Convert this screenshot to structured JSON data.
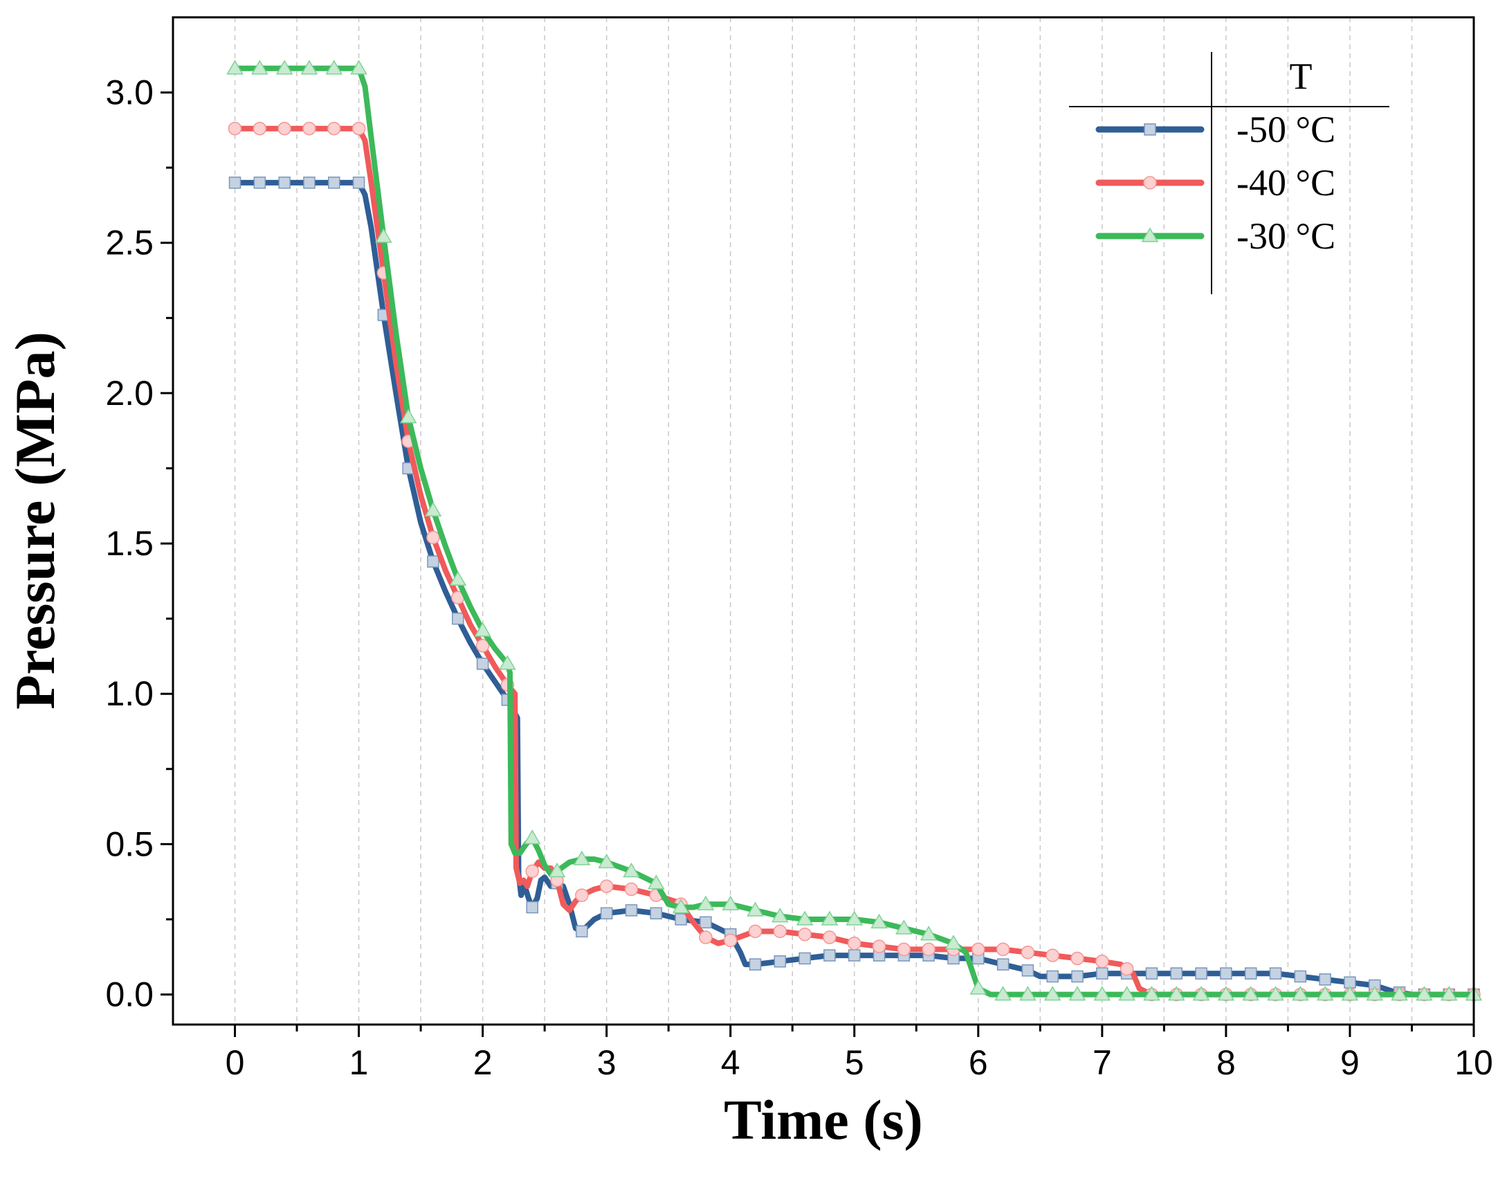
{
  "chart_data": {
    "type": "line",
    "title": "",
    "xlabel": "Time (s)",
    "ylabel": "Pressure (MPa)",
    "xlim": [
      -0.5,
      10
    ],
    "ylim": [
      -0.1,
      3.25
    ],
    "xticks": [
      0,
      1,
      2,
      3,
      4,
      5,
      6,
      7,
      8,
      9,
      10
    ],
    "xtick_labels": [
      "0",
      "1",
      "2",
      "3",
      "4",
      "5",
      "6",
      "7",
      "8",
      "9",
      "10"
    ],
    "yticks": [
      0.0,
      0.5,
      1.0,
      1.5,
      2.0,
      2.5,
      3.0
    ],
    "ytick_labels": [
      "0.0",
      "0.5",
      "1.0",
      "1.5",
      "2.0",
      "2.5",
      "3.0"
    ],
    "vertical_grid_step": 0.5,
    "grid": "vertical dashed",
    "legend_title": "T",
    "legend_position": "top-right",
    "series": [
      {
        "name": "-50 °C",
        "color": "#2f5e96",
        "marker": "square",
        "x": [
          0,
          0.2,
          0.4,
          0.6,
          0.8,
          1.0,
          1.05,
          1.1,
          1.2,
          1.3,
          1.4,
          1.5,
          1.6,
          1.7,
          1.8,
          1.9,
          2.0,
          2.1,
          2.2,
          2.28,
          2.29,
          2.31,
          2.34,
          2.37,
          2.4,
          2.44,
          2.47,
          2.5,
          2.55,
          2.6,
          2.65,
          2.7,
          2.75,
          2.8,
          2.85,
          2.9,
          3.0,
          3.2,
          3.4,
          3.6,
          3.8,
          4.0,
          4.08,
          4.12,
          4.2,
          4.4,
          4.6,
          4.8,
          5.0,
          5.2,
          5.4,
          5.6,
          5.8,
          6.0,
          6.2,
          6.4,
          6.5,
          6.6,
          6.8,
          7.0,
          7.2,
          7.4,
          7.6,
          7.8,
          8.0,
          8.2,
          8.4,
          8.6,
          8.8,
          9.0,
          9.2,
          9.35,
          9.5,
          9.6,
          9.8,
          10.0
        ],
        "y": [
          2.7,
          2.7,
          2.7,
          2.7,
          2.7,
          2.7,
          2.66,
          2.55,
          2.26,
          2.0,
          1.75,
          1.57,
          1.44,
          1.34,
          1.25,
          1.17,
          1.1,
          1.04,
          0.98,
          0.92,
          0.4,
          0.33,
          0.36,
          0.32,
          0.29,
          0.32,
          0.38,
          0.39,
          0.36,
          0.37,
          0.36,
          0.3,
          0.22,
          0.21,
          0.23,
          0.25,
          0.27,
          0.28,
          0.27,
          0.25,
          0.24,
          0.2,
          0.14,
          0.1,
          0.1,
          0.11,
          0.12,
          0.13,
          0.13,
          0.13,
          0.13,
          0.13,
          0.12,
          0.12,
          0.1,
          0.08,
          0.06,
          0.06,
          0.06,
          0.07,
          0.07,
          0.07,
          0.07,
          0.07,
          0.07,
          0.07,
          0.07,
          0.06,
          0.05,
          0.04,
          0.03,
          0.01,
          0.0,
          0.0,
          0.0,
          0.0
        ]
      },
      {
        "name": "-40 °C",
        "color": "#f05a5a",
        "marker": "circle",
        "x": [
          0,
          0.2,
          0.4,
          0.6,
          0.8,
          1.0,
          1.05,
          1.1,
          1.2,
          1.3,
          1.4,
          1.5,
          1.6,
          1.7,
          1.8,
          1.9,
          2.0,
          2.1,
          2.2,
          2.26,
          2.27,
          2.3,
          2.33,
          2.36,
          2.4,
          2.45,
          2.5,
          2.55,
          2.6,
          2.65,
          2.7,
          2.75,
          2.8,
          2.9,
          3.0,
          3.2,
          3.4,
          3.55,
          3.6,
          3.7,
          3.8,
          3.9,
          4.0,
          4.2,
          4.4,
          4.6,
          4.8,
          5.0,
          5.2,
          5.4,
          5.6,
          5.8,
          6.0,
          6.2,
          6.4,
          6.6,
          6.8,
          7.0,
          7.15,
          7.25,
          7.3,
          7.4,
          7.6,
          7.8,
          8.0,
          8.5,
          9.0,
          9.5,
          10.0
        ],
        "y": [
          2.88,
          2.88,
          2.88,
          2.88,
          2.88,
          2.88,
          2.84,
          2.7,
          2.4,
          2.1,
          1.84,
          1.66,
          1.52,
          1.41,
          1.32,
          1.23,
          1.16,
          1.09,
          1.03,
          1.0,
          0.42,
          0.37,
          0.38,
          0.36,
          0.41,
          0.44,
          0.42,
          0.42,
          0.38,
          0.3,
          0.28,
          0.31,
          0.33,
          0.35,
          0.36,
          0.35,
          0.33,
          0.31,
          0.3,
          0.24,
          0.19,
          0.17,
          0.18,
          0.21,
          0.21,
          0.2,
          0.19,
          0.17,
          0.16,
          0.15,
          0.15,
          0.15,
          0.15,
          0.15,
          0.14,
          0.13,
          0.12,
          0.11,
          0.1,
          0.07,
          0.02,
          0.0,
          0.0,
          0.0,
          0.0,
          0.0,
          0.0,
          0.0,
          0.0
        ]
      },
      {
        "name": "-30 °C",
        "color": "#3cb95a",
        "marker": "triangle",
        "x": [
          0,
          0.2,
          0.4,
          0.6,
          0.8,
          1.0,
          1.05,
          1.1,
          1.2,
          1.3,
          1.4,
          1.5,
          1.6,
          1.7,
          1.8,
          1.9,
          2.0,
          2.1,
          2.2,
          2.22,
          2.23,
          2.26,
          2.3,
          2.35,
          2.4,
          2.45,
          2.5,
          2.55,
          2.6,
          2.7,
          2.8,
          2.9,
          3.0,
          3.2,
          3.4,
          3.5,
          3.6,
          3.7,
          3.8,
          4.0,
          4.2,
          4.4,
          4.6,
          4.8,
          5.0,
          5.2,
          5.4,
          5.6,
          5.8,
          5.9,
          5.95,
          6.0,
          6.1,
          6.5,
          7.0,
          8.0,
          9.0,
          10.0
        ],
        "y": [
          3.08,
          3.08,
          3.08,
          3.08,
          3.08,
          3.08,
          3.02,
          2.85,
          2.52,
          2.2,
          1.92,
          1.75,
          1.61,
          1.49,
          1.38,
          1.29,
          1.21,
          1.15,
          1.1,
          1.07,
          0.5,
          0.47,
          0.47,
          0.5,
          0.52,
          0.48,
          0.43,
          0.4,
          0.41,
          0.44,
          0.45,
          0.45,
          0.44,
          0.41,
          0.37,
          0.3,
          0.29,
          0.29,
          0.3,
          0.3,
          0.28,
          0.26,
          0.25,
          0.25,
          0.25,
          0.24,
          0.22,
          0.2,
          0.17,
          0.14,
          0.08,
          0.02,
          0.0,
          0.0,
          0.0,
          0.0,
          0.0,
          0.0
        ]
      }
    ]
  }
}
